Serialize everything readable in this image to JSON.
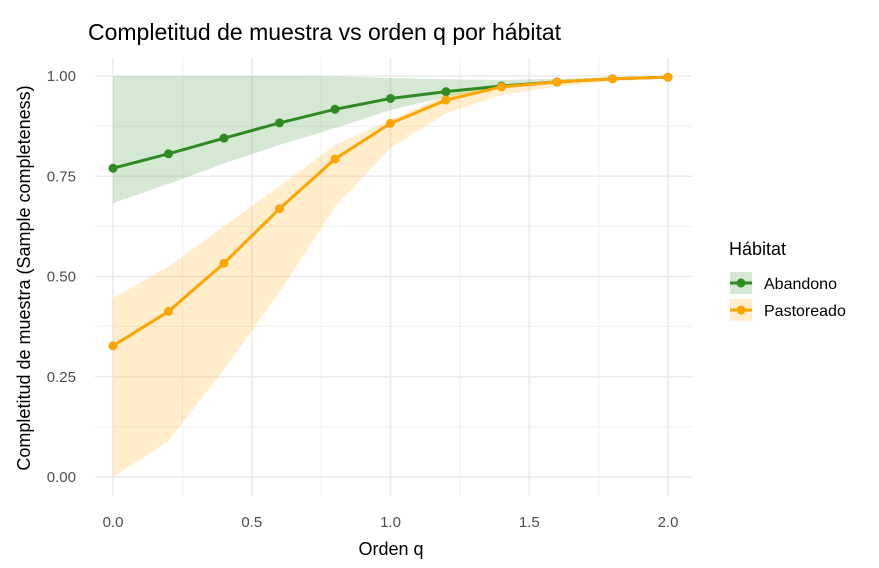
{
  "chart_data": {
    "type": "line",
    "title": "Completitud de muestra vs orden q por hábitat",
    "xlabel": "Orden q",
    "ylabel": "Completitud de muestra (Sample completeness)",
    "xlim": [
      0,
      2.0
    ],
    "ylim": [
      0,
      1.0
    ],
    "x_ticks": [
      "0.0",
      "0.5",
      "1.0",
      "1.5",
      "2.0"
    ],
    "y_ticks": [
      "0.00",
      "0.25",
      "0.50",
      "0.75",
      "1.00"
    ],
    "grid": true,
    "legend": {
      "title": "Hábitat",
      "placement": "right"
    },
    "x": [
      0,
      0.2,
      0.4,
      0.6,
      0.8,
      1.0,
      1.2,
      1.4,
      1.6,
      1.8,
      2.0
    ],
    "series": [
      {
        "name": "Abandono",
        "color": "#2E8B22",
        "ribbon_color": "#A7D3A7",
        "values": [
          0.77,
          0.806,
          0.845,
          0.883,
          0.917,
          0.944,
          0.961,
          0.975,
          0.985,
          0.993,
          0.997
        ],
        "lower": [
          0.683,
          0.731,
          0.782,
          0.828,
          0.87,
          0.915,
          0.948,
          0.969,
          0.982,
          0.99,
          0.995
        ],
        "upper": [
          1.0,
          1.0,
          1.0,
          1.0,
          0.999,
          0.995,
          0.992,
          0.99,
          0.993,
          0.996,
          0.999
        ]
      },
      {
        "name": "Pastoreado",
        "color": "#FFA500",
        "ribbon_color": "#FFE0A8",
        "values": [
          0.327,
          0.413,
          0.533,
          0.669,
          0.793,
          0.882,
          0.94,
          0.973,
          0.985,
          0.993,
          0.997
        ],
        "lower": [
          0.0,
          0.089,
          0.269,
          0.461,
          0.674,
          0.82,
          0.907,
          0.953,
          0.973,
          0.986,
          0.995
        ],
        "upper": [
          0.446,
          0.525,
          0.625,
          0.725,
          0.828,
          0.89,
          0.953,
          0.978,
          0.99,
          0.997,
          1.0
        ]
      }
    ]
  }
}
